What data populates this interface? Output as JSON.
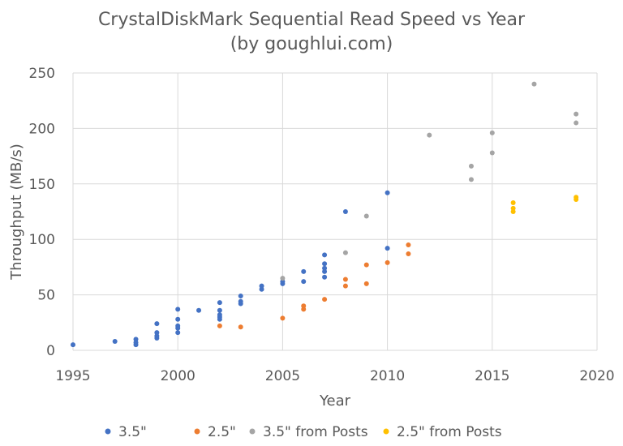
{
  "chart_data": {
    "type": "scatter",
    "title": "CrystalDiskMark Sequential Read Speed vs Year",
    "subtitle": "(by goughlui.com)",
    "xlabel": "Year",
    "ylabel": "Throughput (MB/s)",
    "xlim": [
      1995,
      2020
    ],
    "ylim": [
      0,
      250
    ],
    "xticks": [
      1995,
      2000,
      2005,
      2010,
      2015,
      2020
    ],
    "yticks": [
      0,
      50,
      100,
      150,
      200,
      250
    ],
    "grid": true,
    "legend_position": "bottom",
    "series": [
      {
        "name": "3.5\"",
        "color": "#4472c4",
        "points": [
          [
            1995,
            5
          ],
          [
            1997,
            8
          ],
          [
            1998,
            5
          ],
          [
            1998,
            7
          ],
          [
            1998,
            10
          ],
          [
            1999,
            11
          ],
          [
            1999,
            13
          ],
          [
            1999,
            16
          ],
          [
            1999,
            24
          ],
          [
            2000,
            16
          ],
          [
            2000,
            20
          ],
          [
            2000,
            22
          ],
          [
            2000,
            28
          ],
          [
            2000,
            37
          ],
          [
            2001,
            36
          ],
          [
            2002,
            28
          ],
          [
            2002,
            30
          ],
          [
            2002,
            32
          ],
          [
            2002,
            36
          ],
          [
            2002,
            43
          ],
          [
            2003,
            42
          ],
          [
            2003,
            44
          ],
          [
            2003,
            49
          ],
          [
            2004,
            55
          ],
          [
            2004,
            58
          ],
          [
            2005,
            60
          ],
          [
            2005,
            62
          ],
          [
            2006,
            62
          ],
          [
            2006,
            71
          ],
          [
            2007,
            66
          ],
          [
            2007,
            71
          ],
          [
            2007,
            74
          ],
          [
            2007,
            78
          ],
          [
            2007,
            86
          ],
          [
            2008,
            125
          ],
          [
            2010,
            92
          ],
          [
            2010,
            142
          ]
        ]
      },
      {
        "name": "2.5\"",
        "color": "#ed7d31",
        "points": [
          [
            2002,
            22
          ],
          [
            2003,
            21
          ],
          [
            2005,
            29
          ],
          [
            2006,
            37
          ],
          [
            2006,
            40
          ],
          [
            2007,
            46
          ],
          [
            2008,
            58
          ],
          [
            2008,
            64
          ],
          [
            2009,
            60
          ],
          [
            2009,
            77
          ],
          [
            2010,
            79
          ],
          [
            2011,
            87
          ],
          [
            2011,
            95
          ]
        ]
      },
      {
        "name": "3.5\" from Posts",
        "color": "#a5a5a5",
        "points": [
          [
            2005,
            65
          ],
          [
            2008,
            88
          ],
          [
            2009,
            121
          ],
          [
            2012,
            194
          ],
          [
            2014,
            154
          ],
          [
            2014,
            166
          ],
          [
            2015,
            178
          ],
          [
            2015,
            196
          ],
          [
            2017,
            240
          ],
          [
            2019,
            205
          ],
          [
            2019,
            213
          ]
        ]
      },
      {
        "name": "2.5\" from Posts",
        "color": "#ffc000",
        "points": [
          [
            2016,
            125
          ],
          [
            2016,
            128
          ],
          [
            2016,
            133
          ],
          [
            2019,
            136
          ],
          [
            2019,
            138
          ]
        ]
      }
    ]
  }
}
